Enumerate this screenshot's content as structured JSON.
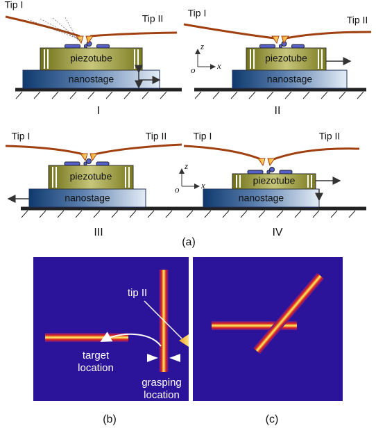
{
  "panels": [
    {
      "label": "I",
      "tip_left": "Tip I",
      "tip_right": "Tip II",
      "piezo": "piezotube",
      "stage": "nanostage"
    },
    {
      "label": "II",
      "tip_left": "Tip I",
      "tip_right": "Tip II",
      "piezo": "piezotube",
      "stage": "nanostage",
      "axes": {
        "z": "z",
        "x": "x",
        "o": "o"
      }
    },
    {
      "label": "III",
      "tip_left": "Tip I",
      "tip_right": "Tip II",
      "piezo": "piezotube",
      "stage": "nanostage"
    },
    {
      "label": "IV",
      "tip_left": "Tip I",
      "tip_right": "Tip II",
      "piezo": "piezotube",
      "stage": "nanostage",
      "axes": {
        "z": "z",
        "x": "x",
        "o": "o"
      }
    }
  ],
  "caption_a": "(a)",
  "image_b": {
    "tip": "tip II",
    "target": [
      "target",
      "location"
    ],
    "grasping": [
      "grasping",
      "location"
    ],
    "caption": "(b)"
  },
  "image_c": {
    "caption": "(c)"
  }
}
